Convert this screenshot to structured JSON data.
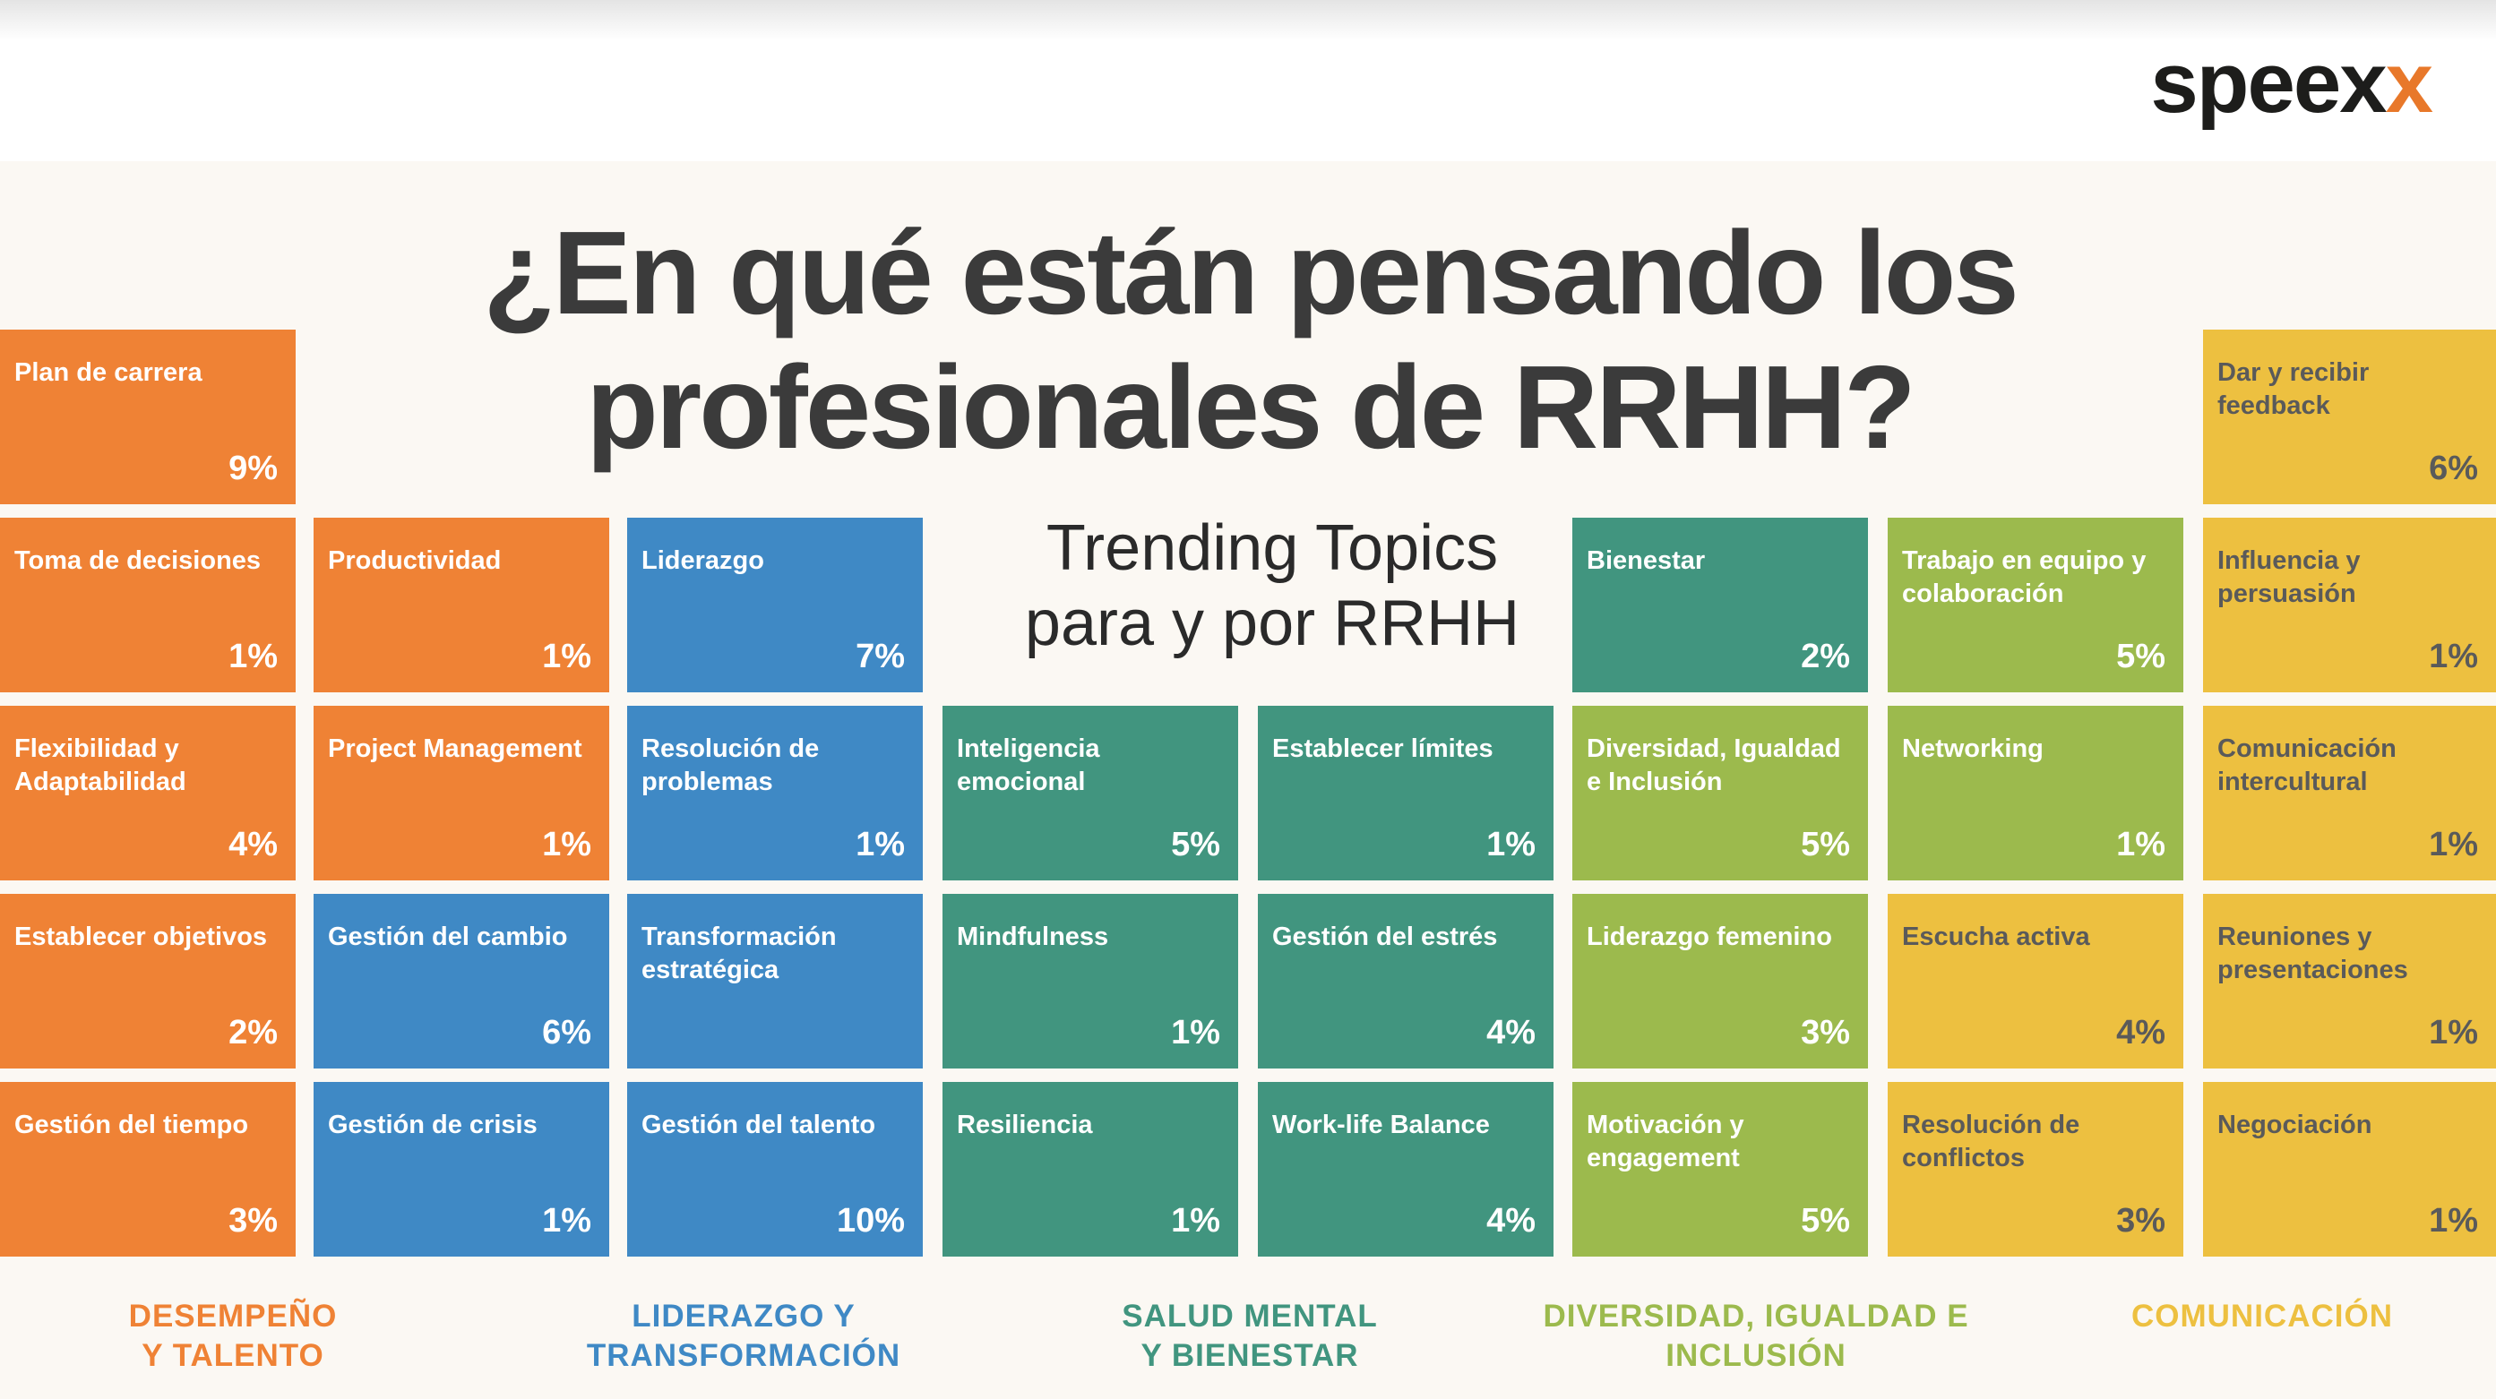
{
  "brand": {
    "name": "speex",
    "accent": "x"
  },
  "title": {
    "line1": "¿En qué están pensando los",
    "line2": "profesionales de RRHH?"
  },
  "subtitle": {
    "line1": "Trending Topics",
    "line2": "para y por RRHH"
  },
  "colors": {
    "orange": "#ef8235",
    "blue": "#3f89c5",
    "teal": "#41957f",
    "green": "#9cba4d",
    "yellow": "#edc040"
  },
  "categories": [
    {
      "line1": "DESEMPEÑO",
      "line2": "Y TALENTO",
      "color": "#ef8235"
    },
    {
      "line1": "LIDERAZGO Y",
      "line2": "TRANSFORMACIÓN",
      "color": "#3f89c5"
    },
    {
      "line1": "SALUD MENTAL",
      "line2": "Y BIENESTAR",
      "color": "#41957f"
    },
    {
      "line1": "DIVERSIDAD, IGUALDAD E",
      "line2": "INCLUSIÓN",
      "color": "#9cba4d"
    },
    {
      "line1": "COMUNICACIÓN",
      "line2": "",
      "color": "#edc040"
    }
  ],
  "tiles": [
    {
      "label": "Plan de carrera",
      "value": "9%"
    },
    {
      "label": "Toma de decisiones",
      "value": "1%"
    },
    {
      "label": "Flexibilidad y Adaptabilidad",
      "value": "4%"
    },
    {
      "label": "Establecer objetivos",
      "value": "2%"
    },
    {
      "label": "Gestión del tiempo",
      "value": "3%"
    },
    {
      "label": "Productividad",
      "value": "1%"
    },
    {
      "label": "Project Management",
      "value": "1%"
    },
    {
      "label": "Gestión del cambio",
      "value": "6%"
    },
    {
      "label": "Gestión de crisis",
      "value": "1%"
    },
    {
      "label": "Liderazgo",
      "value": "7%"
    },
    {
      "label": "Resolución de problemas",
      "value": "1%"
    },
    {
      "label": "Transformación estratégica",
      "value": ""
    },
    {
      "label": "Gestión del talento",
      "value": "10%"
    },
    {
      "label": "Inteligencia emocional",
      "value": "5%"
    },
    {
      "label": "Mindfulness",
      "value": "1%"
    },
    {
      "label": "Resiliencia",
      "value": "1%"
    },
    {
      "label": "Establecer límites",
      "value": "1%"
    },
    {
      "label": "Gestión del estrés",
      "value": "4%"
    },
    {
      "label": "Work-life Balance",
      "value": "4%"
    },
    {
      "label": "Bienestar",
      "value": "2%"
    },
    {
      "label": "Diversidad, Igualdad e Inclusión",
      "value": "5%"
    },
    {
      "label": "Liderazgo femenino",
      "value": "3%"
    },
    {
      "label": "Motivación y engagement",
      "value": "5%"
    },
    {
      "label": "Trabajo en equipo y colaboración",
      "value": "5%"
    },
    {
      "label": "Networking",
      "value": "1%"
    },
    {
      "label": "Escucha activa",
      "value": "4%"
    },
    {
      "label": "Resolución de conflictos",
      "value": "3%"
    },
    {
      "label": "Dar y recibir feedback",
      "value": "6%"
    },
    {
      "label": "Influencia y persuasión",
      "value": "1%"
    },
    {
      "label": "Comunicación intercultural",
      "value": "1%"
    },
    {
      "label": "Reuniones y presentaciones",
      "value": "1%"
    },
    {
      "label": "Negociación",
      "value": "1%"
    }
  ]
}
